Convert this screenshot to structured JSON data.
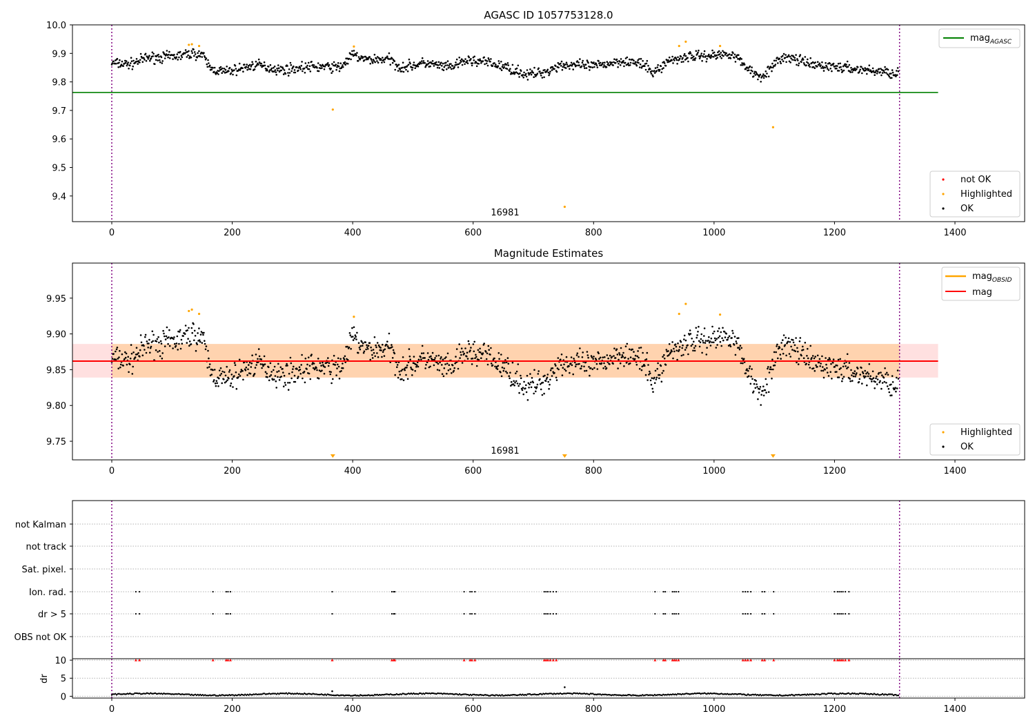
{
  "chart_data": [
    {
      "type": "scatter",
      "title": "AGASC ID 1057753128.0",
      "xlim": [
        -65,
        1520
      ],
      "ylim": [
        9.31,
        10.0
      ],
      "xticks": [
        "0",
        "200",
        "400",
        "600",
        "800",
        "1000",
        "1200",
        "1400"
      ],
      "yticks": [
        "9.4",
        "9.5",
        "9.6",
        "9.7",
        "9.8",
        "9.9",
        "10.0"
      ],
      "obsid_label": "16981",
      "obsid_boundaries_x": [
        0,
        1308
      ],
      "mag_agasc": 9.763,
      "mag_agasc_x_range": [
        -65,
        1372
      ],
      "ok_series": {
        "name": "OK",
        "color": "#000000",
        "n_points": 1300,
        "x_range": [
          0,
          1306
        ],
        "mean": 9.862
      },
      "highlighted_points": [
        [
          128,
          9.93
        ],
        [
          133,
          9.932
        ],
        [
          145,
          9.926
        ],
        [
          367,
          9.703
        ],
        [
          402,
          9.924
        ],
        [
          752,
          9.362
        ],
        [
          942,
          9.926
        ],
        [
          953,
          9.941
        ],
        [
          1010,
          9.926
        ],
        [
          1098,
          9.641
        ]
      ],
      "legend_line": [
        {
          "label": "mag",
          "subscript": "AGASC",
          "color": "#008000"
        }
      ],
      "legend_points": [
        {
          "label": "not OK",
          "color": "#ff0000"
        },
        {
          "label": "Highlighted",
          "color": "#ffa500"
        },
        {
          "label": "OK",
          "color": "#000000"
        }
      ],
      "legend_line_position": "top-right",
      "legend_points_position": "bottom-right",
      "grid": false
    },
    {
      "type": "scatter",
      "title": "Magnitude Estimates",
      "xlim": [
        -65,
        1520
      ],
      "ylim": [
        9.724,
        9.999
      ],
      "xticks": [
        "0",
        "200",
        "400",
        "600",
        "800",
        "1000",
        "1200",
        "1400"
      ],
      "yticks": [
        "9.75",
        "9.80",
        "9.85",
        "9.90",
        "9.95"
      ],
      "obsid_label": "16981",
      "obsid_boundaries_x": [
        0,
        1308
      ],
      "mag": 9.862,
      "mag_band": [
        9.839,
        9.886
      ],
      "mag_x_range": [
        -65,
        1372
      ],
      "highlighted_points": [
        [
          128,
          9.932
        ],
        [
          133,
          9.934
        ],
        [
          145,
          9.928
        ],
        [
          402,
          9.924
        ],
        [
          942,
          9.928
        ],
        [
          953,
          9.942
        ],
        [
          1010,
          9.927
        ]
      ],
      "highlighted_offscale_x": [
        367,
        752,
        1098
      ],
      "legend_line": [
        {
          "label": "mag",
          "subscript": "OBSID",
          "color": "#ffa500"
        },
        {
          "label": "mag",
          "subscript": "",
          "color": "#ff0000"
        }
      ],
      "legend_points": [
        {
          "label": "Highlighted",
          "color": "#ffa500"
        },
        {
          "label": "OK",
          "color": "#000000"
        }
      ],
      "legend_line_position": "top-right",
      "legend_points_position": "bottom-right",
      "grid": false
    },
    {
      "type": "scatter",
      "title": "",
      "xlim": [
        -65,
        1520
      ],
      "xticks": [
        "0",
        "200",
        "400",
        "600",
        "800",
        "1000",
        "1200",
        "1400"
      ],
      "flag_rows": [
        "not Kalman",
        "not track",
        "Sat. pixel.",
        "Ion. rad.",
        "dr > 5",
        "OBS not OK"
      ],
      "flag_times": [
        40,
        46,
        168,
        190,
        193,
        197,
        366,
        465,
        468,
        470,
        585,
        595,
        598,
        603,
        718,
        721,
        724,
        728,
        733,
        738,
        902,
        916,
        919,
        931,
        934,
        937,
        941,
        1048,
        1052,
        1056,
        1061,
        1080,
        1084,
        1099,
        1200,
        1205,
        1208,
        1211,
        1214,
        1218,
        1224
      ],
      "flagged_rows": [
        "Ion. rad.",
        "dr > 5"
      ],
      "dr_ylabel": "dr",
      "dr_yticks": [
        "0",
        "5",
        "10"
      ],
      "dr_ylim": [
        -0.5,
        10.4
      ],
      "dr_marker_value": 10,
      "dr_outliers": [
        [
          366,
          1.4
        ],
        [
          752,
          2.5
        ]
      ],
      "grid": true
    }
  ]
}
